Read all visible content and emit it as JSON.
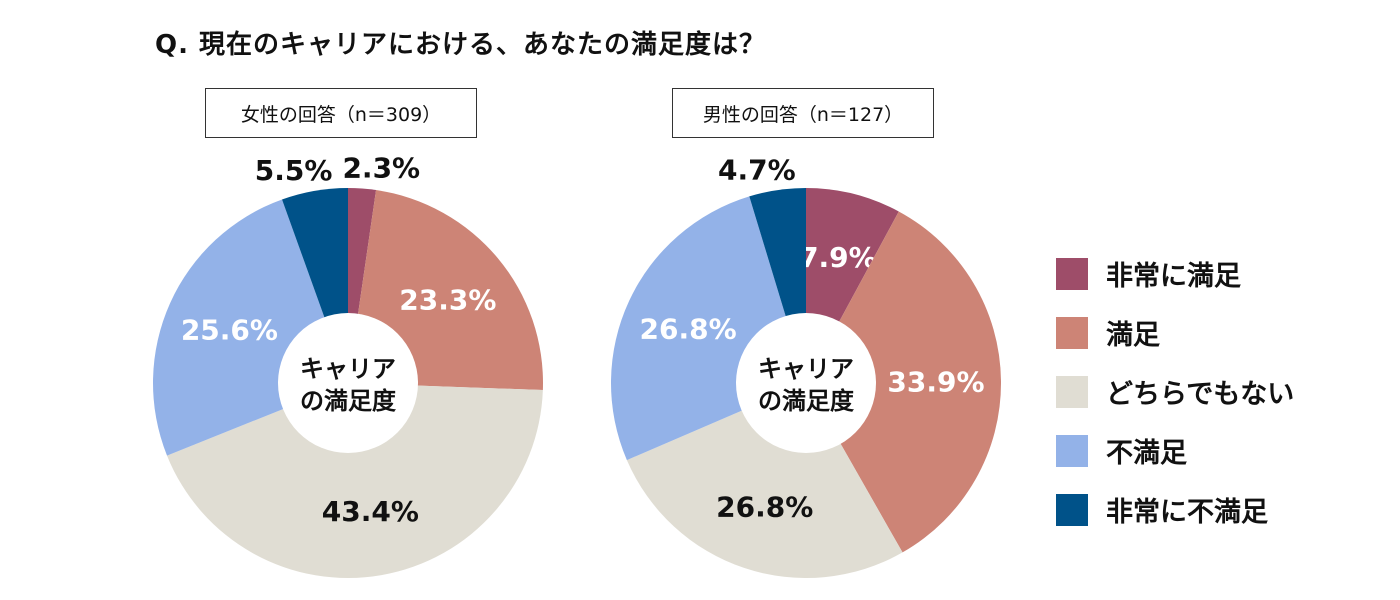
{
  "title": "Q. 現在のキャリアにおける、あなたの満足度は？",
  "chart_data": [
    {
      "type": "pie",
      "title": "女性の回答（n＝309）",
      "center_label": [
        "キャリア",
        "の満足度"
      ],
      "categories": [
        "非常に満足",
        "満足",
        "どちらでもない",
        "不満足",
        "非常に不満足"
      ],
      "values": [
        2.3,
        23.3,
        43.4,
        25.6,
        5.5
      ],
      "labels": [
        "2.3%",
        "23.3%",
        "43.4%",
        "25.6%",
        "5.5%"
      ]
    },
    {
      "type": "pie",
      "title": "男性の回答（n＝127）",
      "center_label": [
        "キャリア",
        "の満足度"
      ],
      "categories": [
        "非常に満足",
        "満足",
        "どちらでもない",
        "不満足",
        "非常に不満足"
      ],
      "values": [
        7.9,
        33.9,
        26.8,
        26.8,
        4.7
      ],
      "labels": [
        "7.9%",
        "33.9%",
        "26.8%",
        "26.8%",
        "4.7%"
      ]
    }
  ],
  "legend": {
    "placement": "right",
    "items": [
      {
        "label": "非常に満足",
        "color": "#9e4d69"
      },
      {
        "label": "満足",
        "color": "#cd8476"
      },
      {
        "label": "どちらでもない",
        "color": "#e0ddd3"
      },
      {
        "label": "不満足",
        "color": "#93b2e8"
      },
      {
        "label": "非常に不満足",
        "color": "#005289"
      }
    ]
  }
}
